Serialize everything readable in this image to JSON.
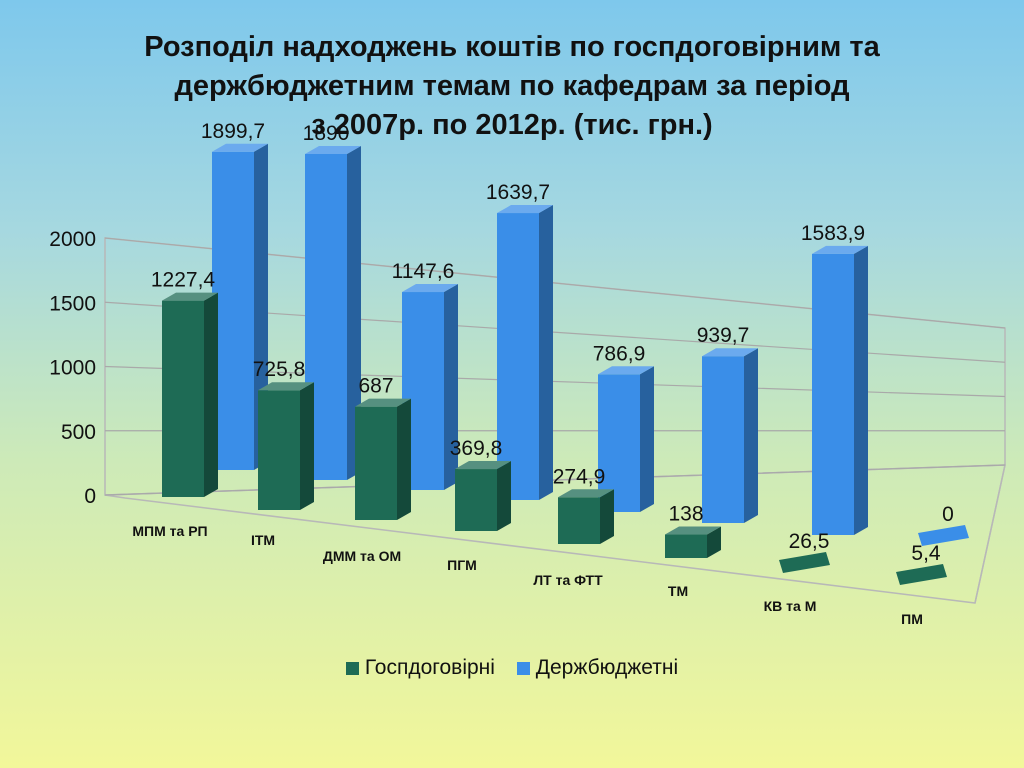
{
  "title": {
    "line1": "Розподіл надходжень коштів по госпдоговірним та",
    "line2": "держбюджетним  темам по кафедрам за період",
    "line3": "з 2007р. по 2012р. (тис. грн.)"
  },
  "chart_data": {
    "type": "bar",
    "categories": [
      "МПМ та РП",
      "ІТМ",
      "ДММ та ОМ",
      "ПГМ",
      "ЛТ та ФТТ",
      "ТМ",
      "КВ та М",
      "ПМ"
    ],
    "series": [
      {
        "name": "Госпдоговірні",
        "color": "#1e6b55",
        "values": [
          1227.4,
          725.8,
          687,
          369.8,
          274.9,
          138,
          26.5,
          5.4
        ],
        "labels": [
          "1227,4",
          "725,8",
          "687",
          "369,8",
          "274,9",
          "138",
          "26,5",
          "5,4"
        ]
      },
      {
        "name": "Держбюджетні",
        "color": "#3a8ee8",
        "values": [
          1899.7,
          1890,
          1147.6,
          1639.7,
          786.9,
          939.7,
          1583.9,
          0
        ],
        "labels": [
          "1899,7",
          "1890",
          "1147,6",
          "1639,7",
          "786,9",
          "939,7",
          "1583,9",
          "0"
        ]
      }
    ],
    "yticks": [
      "0",
      "500",
      "1000",
      "1500",
      "2000"
    ],
    "ylim": [
      0,
      2000
    ],
    "grid": true,
    "legend_position": "bottom",
    "style": "3d-clustered-column"
  }
}
